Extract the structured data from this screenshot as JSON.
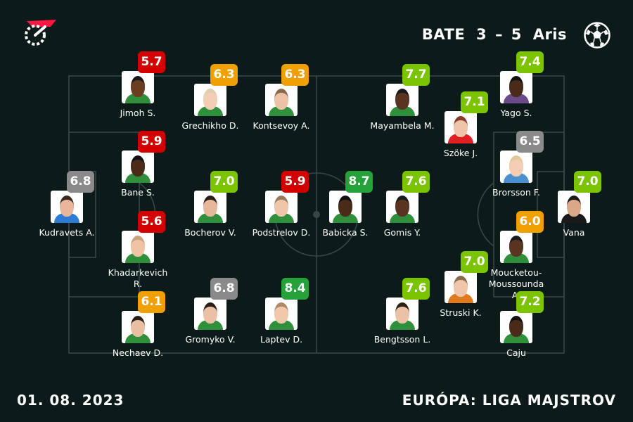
{
  "match": {
    "home_team": "BATE",
    "away_team": "Aris",
    "home_score": "3",
    "away_score": "5",
    "separator": "–"
  },
  "date": "01. 08. 2023",
  "competition": "EURÓPA: LIGA MAJSTROV",
  "colors": {
    "rating_red": "#d40000",
    "rating_orange": "#f0a000",
    "rating_lightgreen": "#7cc300",
    "rating_green": "#25a33a",
    "rating_gray": "#8a8a8a",
    "pitch_lines": "#3a4646",
    "accent": "#ff1744"
  },
  "players": [
    {
      "name": "Kudravets A.",
      "rating": "6.8",
      "rating_color": "gray",
      "skin": "#e8b79a",
      "hair": "#3a2a1e",
      "shirt": "#2e7bd6"
    },
    {
      "name": "Jimoh S.",
      "rating": "5.7",
      "rating_color": "red",
      "skin": "#6b3e22",
      "hair": "#1a1a1a",
      "shirt": "#2f8f3a"
    },
    {
      "name": "Bane S.",
      "rating": "5.9",
      "rating_color": "red",
      "skin": "#4a2a18",
      "hair": "#111111",
      "shirt": "#2f8f3a"
    },
    {
      "name": "Khadarkevich R.",
      "rating": "5.6",
      "rating_color": "red",
      "skin": "#f0c2a6",
      "hair": "#c9a27a",
      "shirt": "#2f8f3a"
    },
    {
      "name": "Nechaev D.",
      "rating": "6.1",
      "rating_color": "orange",
      "skin": "#e9bfa2",
      "hair": "#2a1e16",
      "shirt": "#2f8f3a"
    },
    {
      "name": "Grechikho D.",
      "rating": "6.3",
      "rating_color": "orange",
      "skin": "#f3cdb4",
      "hair": "#e0d0b0",
      "shirt": "#2f8f3a"
    },
    {
      "name": "Bocherov V.",
      "rating": "7.0",
      "rating_color": "lightgreen",
      "skin": "#e6b89a",
      "hair": "#2a1e16",
      "shirt": "#2f8f3a"
    },
    {
      "name": "Gromyko V.",
      "rating": "6.8",
      "rating_color": "gray",
      "skin": "#ebc0a4",
      "hair": "#2a1e16",
      "shirt": "#2f8f3a"
    },
    {
      "name": "Kontsevoy A.",
      "rating": "6.3",
      "rating_color": "orange",
      "skin": "#ecc3a7",
      "hair": "#8a6a4a",
      "shirt": "#2f8f3a"
    },
    {
      "name": "Podstrelov D.",
      "rating": "5.9",
      "rating_color": "red",
      "skin": "#efc6aa",
      "hair": "#9a7a5a",
      "shirt": "#2f8f3a"
    },
    {
      "name": "Laptev D.",
      "rating": "8.4",
      "rating_color": "green",
      "skin": "#f0c8ac",
      "hair": "#b08a62",
      "shirt": "#2f8f3a"
    },
    {
      "name": "Mayambela M.",
      "rating": "7.7",
      "rating_color": "lightgreen",
      "skin": "#5a3420",
      "hair": "#1a1a1a",
      "shirt": "#2f8f3a"
    },
    {
      "name": "Babicka S.",
      "rating": "8.7",
      "rating_color": "green",
      "skin": "#4a2a18",
      "hair": "#111111",
      "shirt": "#2f8f3a"
    },
    {
      "name": "Gomis Y.",
      "rating": "7.6",
      "rating_color": "lightgreen",
      "skin": "#5a3420",
      "hair": "#1a1a1a",
      "shirt": "#2f8f3a"
    },
    {
      "name": "Bengtsson L.",
      "rating": "7.6",
      "rating_color": "lightgreen",
      "skin": "#ebc2a6",
      "hair": "#2a1e16",
      "shirt": "#2f8f3a"
    },
    {
      "name": "Yago S.",
      "rating": "7.4",
      "rating_color": "lightgreen",
      "skin": "#4a2a18",
      "hair": "#111111",
      "shirt": "#6a4a8a"
    },
    {
      "name": "Szöke J.",
      "rating": "7.1",
      "rating_color": "lightgreen",
      "skin": "#f0c4a8",
      "hair": "#8a3a2a",
      "shirt": "#e02020"
    },
    {
      "name": "Brorsson F.",
      "rating": "6.5",
      "rating_color": "gray",
      "skin": "#f3cdb4",
      "hair": "#e0c89a",
      "shirt": "#4a90d0"
    },
    {
      "name": "Moucketou-Moussounda A.",
      "rating": "6.0",
      "rating_color": "orange",
      "skin": "#5a3420",
      "hair": "#1a1a1a",
      "shirt": "#2f8f3a"
    },
    {
      "name": "Struski K.",
      "rating": "7.0",
      "rating_color": "lightgreen",
      "skin": "#efc6aa",
      "hair": "#8a6a4a",
      "shirt": "#e07a20"
    },
    {
      "name": "Caju",
      "rating": "7.2",
      "rating_color": "lightgreen",
      "skin": "#4a2a18",
      "hair": "#111111",
      "shirt": "#2f8f3a"
    },
    {
      "name": "Vana",
      "rating": "7.0",
      "rating_color": "lightgreen",
      "skin": "#d9a888",
      "hair": "#1a1a1a",
      "shirt": "#1a1a1a"
    }
  ]
}
